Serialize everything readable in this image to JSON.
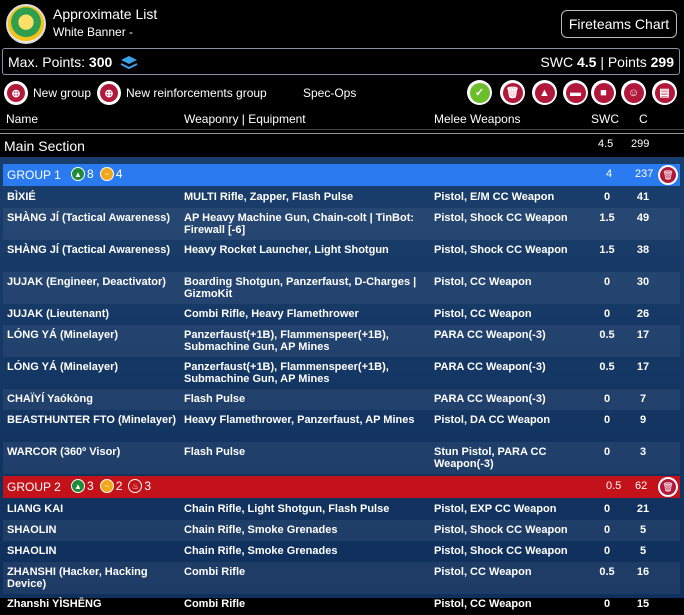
{
  "header": {
    "title": "Approximate List",
    "subtitle": "White Banner -",
    "fireteams_label": "Fireteams Chart"
  },
  "points": {
    "max_label": "Max. Points:",
    "max_value": "300",
    "swc_label": "SWC",
    "swc_value": "4.5",
    "points_label": "| Points",
    "points_value": "299"
  },
  "toolbar": {
    "new_group": "New group",
    "new_reinforcements": "New reinforcements group",
    "spec_ops": "Spec-Ops",
    "icons": [
      "check-icon",
      "trash-icon",
      "warning-icon",
      "chat-icon",
      "save-icon",
      "smiley-icon",
      "print-icon"
    ]
  },
  "columns": {
    "name": "Name",
    "weaponry": "Weaponry | Equipment",
    "melee": "Melee Weapons",
    "swc": "SWC",
    "c": "C"
  },
  "main_section": {
    "label": "Main Section",
    "swc": "4.5",
    "points": "299"
  },
  "groups": [
    {
      "name": "GROUP 1",
      "badges": [
        {
          "icon": "regular-order-icon",
          "count": "8"
        },
        {
          "icon": "irregular-order-icon",
          "count": "4"
        }
      ],
      "swc": "4",
      "points": "237",
      "rows": [
        {
          "name": "BÌXIÉ",
          "weapons": "MULTI Rifle, Zapper, Flash Pulse",
          "melee": "Pistol, E/M CC Weapon",
          "swc": "0",
          "c": "41"
        },
        {
          "name": "SHÀNG JÍ (Tactical Awareness)",
          "weapons": "AP Heavy Machine Gun, Chain-colt | TinBot: Firewall [-6]",
          "melee": "Pistol, Shock CC Weapon",
          "swc": "1.5",
          "c": "49"
        },
        {
          "name": "SHÀNG JÍ (Tactical Awareness)",
          "weapons": "Heavy Rocket Launcher, Light Shotgun",
          "melee": "Pistol, Shock CC Weapon",
          "swc": "1.5",
          "c": "38"
        },
        {
          "name": "JUJAK (Engineer, Deactivator)",
          "weapons": "Boarding Shotgun, Panzerfaust, D-Charges | GizmoKit",
          "melee": "Pistol, CC Weapon",
          "swc": "0",
          "c": "30"
        },
        {
          "name": "JUJAK (Lieutenant)",
          "weapons": "Combi Rifle, Heavy Flamethrower",
          "melee": "Pistol, CC Weapon",
          "swc": "0",
          "c": "26"
        },
        {
          "name": "LÓNG YÁ (Minelayer)",
          "weapons": "Panzerfaust(+1B), Flammenspeer(+1B), Submachine Gun, AP Mines",
          "melee": "PARA CC Weapon(-3)",
          "swc": "0.5",
          "c": "17"
        },
        {
          "name": "LÓNG YÁ (Minelayer)",
          "weapons": "Panzerfaust(+1B), Flammenspeer(+1B), Submachine Gun, AP Mines",
          "melee": "PARA CC Weapon(-3)",
          "swc": "0.5",
          "c": "17"
        },
        {
          "name": "CHAÏYÍ Yaókòng",
          "weapons": "Flash Pulse",
          "melee": "PARA CC Weapon(-3)",
          "swc": "0",
          "c": "7"
        },
        {
          "name": "BEASTHUNTER FTO (Minelayer)",
          "weapons": "Heavy Flamethrower, Panzerfaust, AP Mines",
          "melee": "Pistol, DA CC Weapon",
          "swc": "0",
          "c": "9"
        },
        {
          "name": "WARCOR (360º Visor)",
          "weapons": "Flash Pulse",
          "melee": "Stun Pistol, PARA CC Weapon(-3)",
          "swc": "0",
          "c": "3"
        }
      ]
    },
    {
      "name": "GROUP 2",
      "badges": [
        {
          "icon": "regular-order-icon",
          "count": "3"
        },
        {
          "icon": "irregular-order-icon",
          "count": "2"
        },
        {
          "icon": "impetuous-order-icon",
          "count": "3"
        }
      ],
      "swc": "0.5",
      "points": "62",
      "rows": [
        {
          "name": "LIANG KAI",
          "weapons": "Chain Rifle, Light Shotgun, Flash Pulse",
          "melee": "Pistol, EXP CC Weapon",
          "swc": "0",
          "c": "21"
        },
        {
          "name": "SHAOLIN",
          "weapons": "Chain Rifle, Smoke Grenades",
          "melee": "Pistol, Shock CC Weapon",
          "swc": "0",
          "c": "5"
        },
        {
          "name": "SHAOLIN",
          "weapons": "Chain Rifle, Smoke Grenades",
          "melee": "Pistol, Shock CC Weapon",
          "swc": "0",
          "c": "5"
        },
        {
          "name": "ZHANSHI (Hacker, Hacking Device)",
          "weapons": "Combi Rifle",
          "melee": "Pistol, CC Weapon",
          "swc": "0.5",
          "c": "16"
        },
        {
          "name": "Zhanshi YÌSHĒNG",
          "weapons": "Combi Rifle",
          "melee": "Pistol, CC Weapon",
          "swc": "0",
          "c": "15"
        }
      ]
    }
  ]
}
